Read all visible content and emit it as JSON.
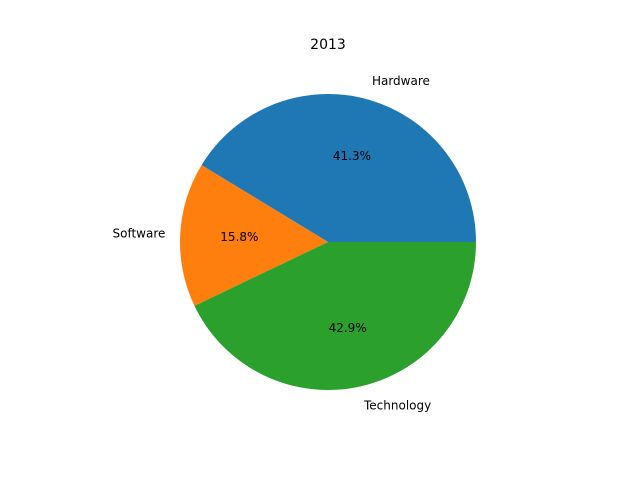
{
  "chart_data": {
    "type": "pie",
    "title": "2013",
    "categories": [
      "Hardware",
      "Software",
      "Technology"
    ],
    "values": [
      41.3,
      15.8,
      42.9
    ],
    "percent_labels": [
      "41.3%",
      "15.8%",
      "42.9%"
    ],
    "colors": [
      "#1f77b4",
      "#ff7f0e",
      "#2ca02c"
    ],
    "start_angle": 0,
    "direction": "counterclockwise",
    "legend": "none"
  }
}
